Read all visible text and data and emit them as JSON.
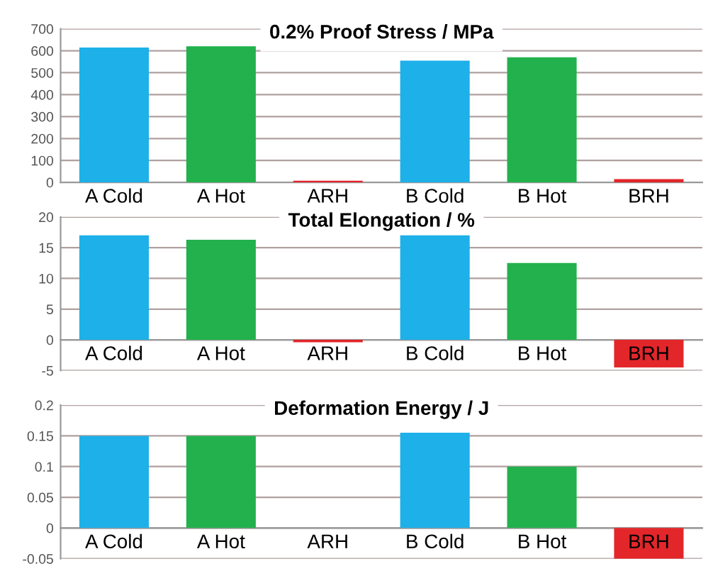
{
  "chart_data": [
    {
      "type": "bar",
      "title": "0.2% Proof Stress / MPa",
      "categories": [
        "A Cold",
        "A Hot",
        "ARH",
        "B Cold",
        "B Hot",
        "BRH"
      ],
      "values": [
        615,
        620,
        8,
        555,
        570,
        15
      ],
      "colors": [
        "#1eb0e8",
        "#22b14c",
        "#e3262a",
        "#1eb0e8",
        "#22b14c",
        "#e3262a"
      ],
      "ylim": [
        0,
        700
      ],
      "yticks": [
        0,
        100,
        200,
        300,
        400,
        500,
        600,
        700
      ],
      "grid": "y"
    },
    {
      "type": "bar",
      "title": "Total Elongation / %",
      "categories": [
        "A Cold",
        "A Hot",
        "ARH",
        "B Cold",
        "B Hot",
        "BRH"
      ],
      "values": [
        17,
        16.3,
        -0.4,
        17,
        12.5,
        -4.5
      ],
      "colors": [
        "#1eb0e8",
        "#22b14c",
        "#e3262a",
        "#1eb0e8",
        "#22b14c",
        "#e3262a"
      ],
      "ylim": [
        -5,
        20
      ],
      "yticks": [
        -5,
        0,
        5,
        10,
        15,
        20
      ],
      "grid": "y"
    },
    {
      "type": "bar",
      "title": "Deformation Energy / J",
      "categories": [
        "A Cold",
        "A Hot",
        "ARH",
        "B Cold",
        "B Hot",
        "BRH"
      ],
      "values": [
        0.15,
        0.15,
        0,
        0.155,
        0.1,
        -0.05
      ],
      "colors": [
        "#1eb0e8",
        "#22b14c",
        "#e3262a",
        "#1eb0e8",
        "#22b14c",
        "#e3262a"
      ],
      "ylim": [
        -0.05,
        0.2
      ],
      "yticks": [
        -0.05,
        0,
        0.05,
        0.1,
        0.15,
        0.2
      ],
      "grid": "y"
    }
  ]
}
